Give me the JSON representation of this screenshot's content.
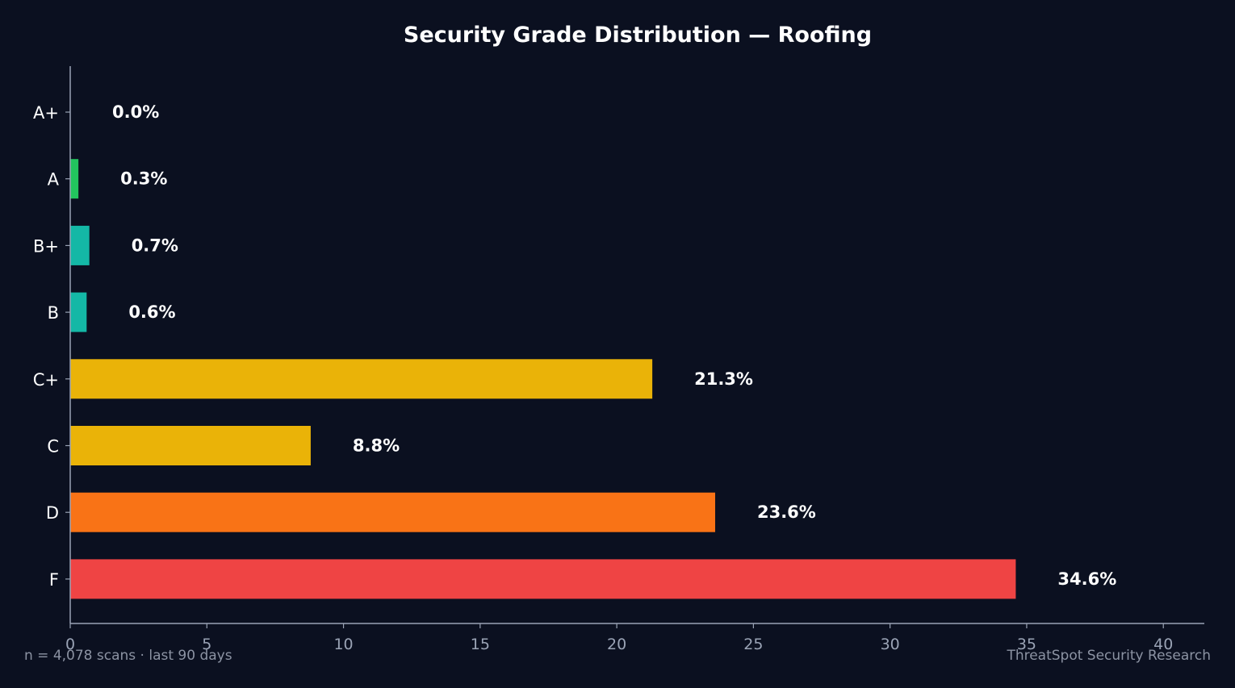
{
  "chart_data": {
    "type": "bar",
    "orientation": "horizontal",
    "title": "Security Grade Distribution — Roofing",
    "xlabel": "",
    "ylabel": "",
    "categories": [
      "A+",
      "A",
      "B+",
      "B",
      "C+",
      "C",
      "D",
      "F"
    ],
    "values": [
      0.0,
      0.3,
      0.7,
      0.6,
      21.3,
      8.8,
      23.6,
      34.6
    ],
    "value_labels": [
      "0.0%",
      "0.3%",
      "0.7%",
      "0.6%",
      "21.3%",
      "8.8%",
      "23.6%",
      "34.6%"
    ],
    "bar_colors": [
      "#22c55e",
      "#22c55e",
      "#14b8a6",
      "#14b8a6",
      "#eab308",
      "#eab308",
      "#f97316",
      "#ef4444"
    ],
    "x_ticks": [
      0,
      5,
      10,
      15,
      20,
      25,
      30,
      35,
      40
    ],
    "xlim": [
      0,
      41.5
    ],
    "grid": false,
    "legend": "none"
  },
  "footer": {
    "left": "n = 4,078 scans · last 90 days",
    "right": "ThreatSpot Security Research"
  },
  "colors": {
    "background": "#0b1020",
    "axis": "#9aa3b5",
    "text": "#ffffff",
    "muted_text": "#8c93a3"
  }
}
